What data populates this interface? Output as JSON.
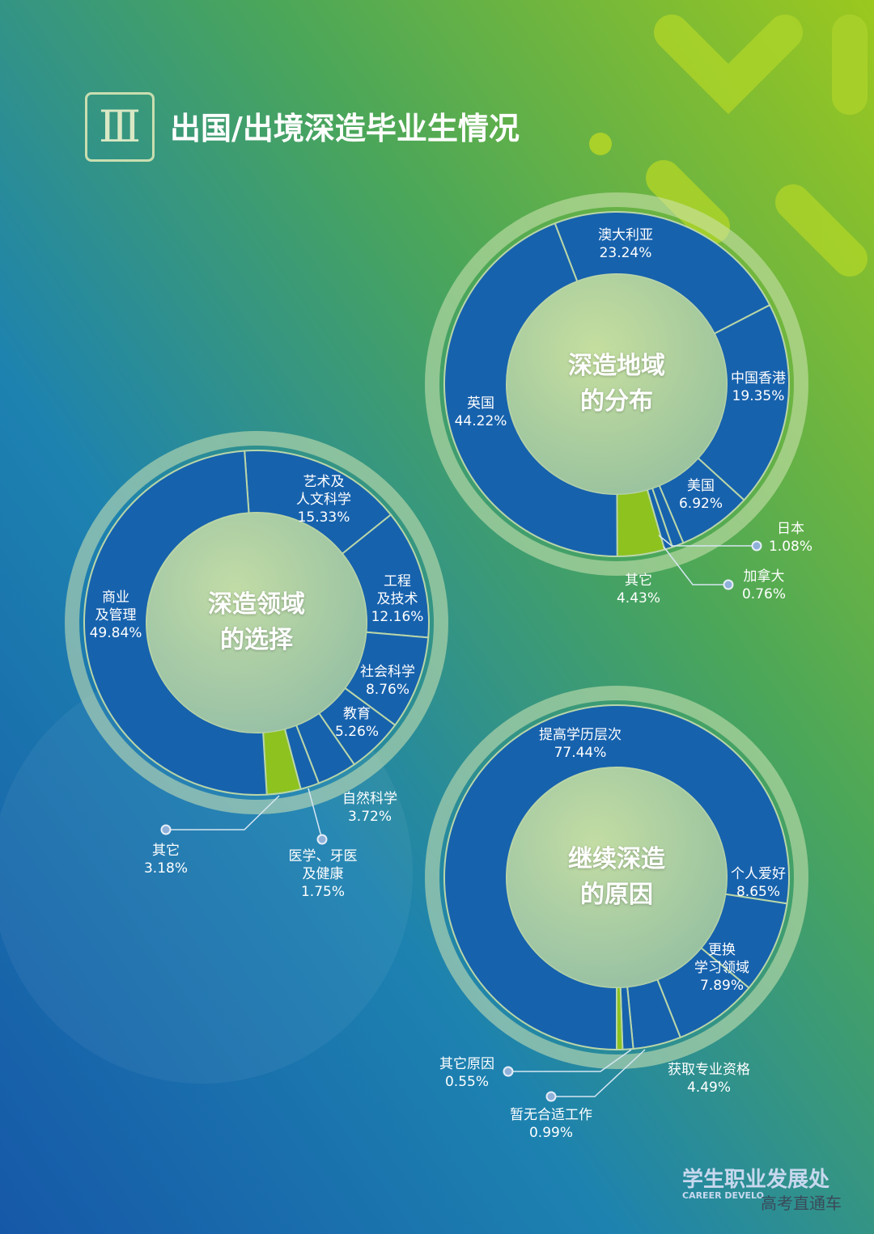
{
  "header": {
    "numeral": "Ⅲ",
    "title": "出国/出境深造毕业生情况"
  },
  "chart_data": [
    {
      "type": "pie",
      "title": "深造地域\n的分布",
      "categories": [
        "澳大利亚",
        "中国香港",
        "美国",
        "日本",
        "加拿大",
        "其它",
        "英国"
      ],
      "values": [
        23.24,
        19.35,
        6.92,
        1.08,
        0.76,
        4.43,
        44.22
      ],
      "value_labels": [
        "23.24%",
        "19.35%",
        "6.92%",
        "1.08%",
        "0.76%",
        "4.43%",
        "44.22%"
      ],
      "colors": [
        "#1762ad",
        "#1762ad",
        "#1762ad",
        "#1762ad",
        "#1762ad",
        "#8dc21f",
        "#1762ad"
      ]
    },
    {
      "type": "pie",
      "title": "深造领域\n的选择",
      "categories": [
        "艺术及\n人文科学",
        "工程\n及技术",
        "社会科学",
        "教育",
        "自然科学",
        "医学、牙医\n及健康",
        "其它",
        "商业\n及管理"
      ],
      "values": [
        15.33,
        12.16,
        8.76,
        5.26,
        3.72,
        1.75,
        3.18,
        49.84
      ],
      "value_labels": [
        "15.33%",
        "12.16%",
        "8.76%",
        "5.26%",
        "3.72%",
        "1.75%",
        "3.18%",
        "49.84%"
      ],
      "colors": [
        "#1762ad",
        "#1762ad",
        "#1762ad",
        "#1762ad",
        "#1762ad",
        "#1762ad",
        "#8dc21f",
        "#1762ad"
      ]
    },
    {
      "type": "pie",
      "title": "继续深造\n的原因",
      "categories": [
        "提高学历层次",
        "个人爱好",
        "更换\n学习领域",
        "获取专业资格",
        "暂无合适工作",
        "其它原因"
      ],
      "values": [
        77.44,
        8.65,
        7.89,
        4.49,
        0.99,
        0.55
      ],
      "value_labels": [
        "77.44%",
        "8.65%",
        "7.89%",
        "4.49%",
        "0.99%",
        "0.55%"
      ],
      "colors": [
        "#1762ad",
        "#1762ad",
        "#1762ad",
        "#1762ad",
        "#1762ad",
        "#8dc21f"
      ]
    }
  ],
  "footer": {
    "org": "学生职业发展处",
    "org_en": "CAREER DEVELO",
    "watermark": "高考直通车"
  }
}
